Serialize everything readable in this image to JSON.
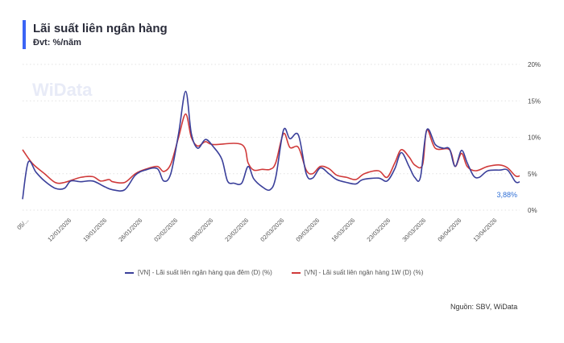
{
  "header": {
    "title": "Lãi suất liên ngân hàng",
    "subtitle": "Đvt: %/năm"
  },
  "watermark": "WiData",
  "source": "Nguồn: SBV, WiData",
  "colors": {
    "overnight": "#3a3f9a",
    "one_week": "#d03a3a",
    "accent": "#3b64f5",
    "last_label": "#2f6fd6"
  },
  "chart_data": {
    "type": "line",
    "title": "Lãi suất liên ngân hàng",
    "ylabel": "%/năm",
    "ylim": [
      0,
      20
    ],
    "yticks": [
      0,
      5,
      10,
      15,
      20
    ],
    "ytick_labels": [
      "0%",
      "5%",
      "10%",
      "15%",
      "20%"
    ],
    "grid": true,
    "legend_position": "bottom",
    "x_unit": "trading-day index",
    "xlim": [
      0,
      70.1
    ],
    "xticks": [
      {
        "x": 0,
        "label": "05/..."
      },
      {
        "x": 6,
        "label": "12/01/2026"
      },
      {
        "x": 11,
        "label": "19/01/2026"
      },
      {
        "x": 16,
        "label": "26/01/2026"
      },
      {
        "x": 21,
        "label": "02/02/2026"
      },
      {
        "x": 26,
        "label": "09/02/2026"
      },
      {
        "x": 31,
        "label": "23/02/2026"
      },
      {
        "x": 36,
        "label": "02/03/2026"
      },
      {
        "x": 41,
        "label": "09/03/2026"
      },
      {
        "x": 46,
        "label": "16/03/2026"
      },
      {
        "x": 51,
        "label": "23/03/2026"
      },
      {
        "x": 56,
        "label": "30/03/2026"
      },
      {
        "x": 61,
        "label": "06/04/2026"
      },
      {
        "x": 66,
        "label": "13/04/2026"
      }
    ],
    "last_value_label": "3,88%",
    "series": [
      {
        "name": "[VN] - Lãi suất liên ngân hàng qua đêm (D) (%)",
        "key": "overnight",
        "points": [
          [
            0,
            1.5
          ],
          [
            0.8,
            6.6
          ],
          [
            1.9,
            5.2
          ],
          [
            3.1,
            4.0
          ],
          [
            4.6,
            3.0
          ],
          [
            5.9,
            3.0
          ],
          [
            6.8,
            4.0
          ],
          [
            8.2,
            3.9
          ],
          [
            9.9,
            4.0
          ],
          [
            11.6,
            3.2
          ],
          [
            12.7,
            2.8
          ],
          [
            14.4,
            2.8
          ],
          [
            15.9,
            4.8
          ],
          [
            17.3,
            5.5
          ],
          [
            19.0,
            5.7
          ],
          [
            19.9,
            4.0
          ],
          [
            20.9,
            5.0
          ],
          [
            22.0,
            10.5
          ],
          [
            23.0,
            16.3
          ],
          [
            23.8,
            10.5
          ],
          [
            24.7,
            8.5
          ],
          [
            25.8,
            9.7
          ],
          [
            26.9,
            8.7
          ],
          [
            28.1,
            7.0
          ],
          [
            28.9,
            4.0
          ],
          [
            29.8,
            3.7
          ],
          [
            30.9,
            3.7
          ],
          [
            31.8,
            6.0
          ],
          [
            32.6,
            4.3
          ],
          [
            33.8,
            3.2
          ],
          [
            34.9,
            2.8
          ],
          [
            35.7,
            4.5
          ],
          [
            36.8,
            11.0
          ],
          [
            37.7,
            9.8
          ],
          [
            38.9,
            10.3
          ],
          [
            40.0,
            5.0
          ],
          [
            40.9,
            4.4
          ],
          [
            42.0,
            5.8
          ],
          [
            43.2,
            5.0
          ],
          [
            44.3,
            4.2
          ],
          [
            45.7,
            3.8
          ],
          [
            47.0,
            3.6
          ],
          [
            48.0,
            4.2
          ],
          [
            50.2,
            4.4
          ],
          [
            51.4,
            4.0
          ],
          [
            52.5,
            5.7
          ],
          [
            53.4,
            7.9
          ],
          [
            54.5,
            6.0
          ],
          [
            55.3,
            4.5
          ],
          [
            56.1,
            4.5
          ],
          [
            57.0,
            11.0
          ],
          [
            58.2,
            9.0
          ],
          [
            59.3,
            8.5
          ],
          [
            60.2,
            8.4
          ],
          [
            61.0,
            6.0
          ],
          [
            61.9,
            8.2
          ],
          [
            62.7,
            6.5
          ],
          [
            63.6,
            4.7
          ],
          [
            64.4,
            4.5
          ],
          [
            65.6,
            5.4
          ],
          [
            67.3,
            5.5
          ],
          [
            68.4,
            5.5
          ],
          [
            69.5,
            3.9
          ],
          [
            70.1,
            3.88
          ]
        ]
      },
      {
        "name": "[VN] - Lãi suất liên ngân hàng 1W (D) (%)",
        "key": "one_week",
        "points": [
          [
            0,
            8.3
          ],
          [
            1.4,
            6.4
          ],
          [
            3.1,
            5.0
          ],
          [
            4.6,
            3.8
          ],
          [
            5.9,
            3.8
          ],
          [
            8.2,
            4.5
          ],
          [
            9.9,
            4.6
          ],
          [
            11.0,
            4.0
          ],
          [
            12.2,
            4.2
          ],
          [
            12.7,
            3.9
          ],
          [
            14.4,
            3.8
          ],
          [
            15.9,
            5.0
          ],
          [
            17.3,
            5.6
          ],
          [
            19.0,
            6.0
          ],
          [
            19.9,
            5.3
          ],
          [
            20.9,
            6.3
          ],
          [
            22.0,
            10.0
          ],
          [
            23.0,
            13.2
          ],
          [
            23.8,
            10.0
          ],
          [
            24.7,
            8.8
          ],
          [
            25.8,
            9.4
          ],
          [
            26.9,
            9.0
          ],
          [
            30.9,
            9.0
          ],
          [
            31.8,
            6.5
          ],
          [
            32.6,
            5.5
          ],
          [
            33.8,
            5.6
          ],
          [
            34.9,
            5.6
          ],
          [
            35.7,
            6.5
          ],
          [
            36.8,
            10.5
          ],
          [
            37.7,
            8.6
          ],
          [
            38.9,
            8.6
          ],
          [
            40.0,
            5.5
          ],
          [
            40.9,
            5.0
          ],
          [
            42.0,
            6.0
          ],
          [
            43.2,
            5.7
          ],
          [
            44.3,
            4.8
          ],
          [
            45.7,
            4.5
          ],
          [
            47.0,
            4.2
          ],
          [
            48.2,
            5.0
          ],
          [
            50.2,
            5.4
          ],
          [
            51.4,
            4.5
          ],
          [
            52.5,
            6.5
          ],
          [
            53.4,
            8.3
          ],
          [
            54.5,
            7.3
          ],
          [
            55.3,
            6.2
          ],
          [
            56.4,
            6.2
          ],
          [
            57.0,
            11.0
          ],
          [
            58.2,
            8.5
          ],
          [
            60.2,
            8.3
          ],
          [
            61.0,
            6.0
          ],
          [
            61.9,
            7.8
          ],
          [
            62.7,
            6.0
          ],
          [
            63.9,
            5.4
          ],
          [
            65.6,
            6.0
          ],
          [
            67.3,
            6.2
          ],
          [
            68.4,
            5.8
          ],
          [
            69.5,
            4.7
          ],
          [
            70.1,
            4.7
          ]
        ]
      }
    ]
  }
}
